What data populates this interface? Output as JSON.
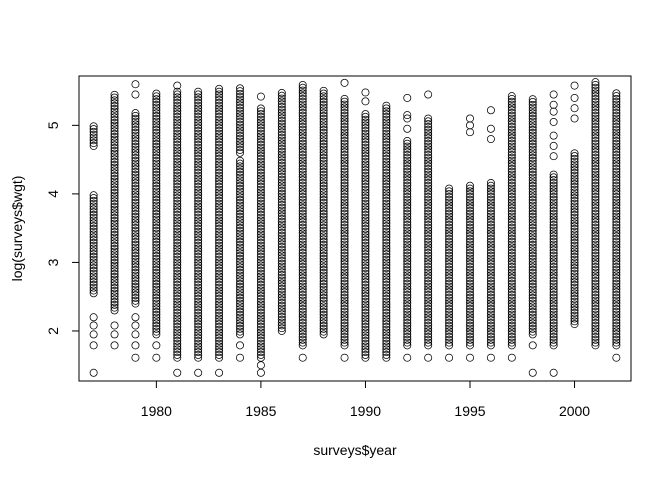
{
  "chart_data": {
    "type": "scatter",
    "title": "",
    "xlabel": "surveys$year",
    "ylabel": "log(surveys$wgt)",
    "xlim": [
      1976.3,
      2002.7
    ],
    "ylim": [
      1.27,
      5.72
    ],
    "x_ticks": [
      1980,
      1985,
      1990,
      1995,
      2000
    ],
    "x_tick_labels": [
      "1980",
      "1985",
      "1990",
      "1995",
      "2000"
    ],
    "y_ticks": [
      2,
      3,
      4,
      5
    ],
    "y_tick_labels": [
      "2",
      "3",
      "4",
      "5"
    ],
    "marker": "open-circle",
    "grid": false,
    "legend": "none",
    "point_color": "#000000",
    "series": [
      {
        "year": 1977,
        "segments": [
          [
            2.55,
            4.02
          ],
          [
            4.7,
            5.0
          ]
        ],
        "isolated": [
          1.39,
          1.79,
          1.95,
          2.08,
          2.2
        ]
      },
      {
        "year": 1978,
        "segments": [
          [
            2.3,
            5.45
          ]
        ],
        "isolated": [
          1.79,
          1.95,
          2.08
        ]
      },
      {
        "year": 1979,
        "segments": [
          [
            2.4,
            5.2
          ]
        ],
        "isolated": [
          1.61,
          1.79,
          1.95,
          2.08,
          2.2,
          5.45,
          5.6
        ]
      },
      {
        "year": 1980,
        "segments": [
          [
            1.95,
            5.5
          ]
        ],
        "isolated": [
          1.61,
          1.79
        ]
      },
      {
        "year": 1981,
        "segments": [
          [
            1.61,
            5.5
          ]
        ],
        "isolated": [
          1.39,
          5.58
        ]
      },
      {
        "year": 1982,
        "segments": [
          [
            1.61,
            5.53
          ]
        ],
        "isolated": [
          1.39
        ]
      },
      {
        "year": 1983,
        "segments": [
          [
            1.61,
            5.55
          ]
        ],
        "isolated": [
          1.39
        ]
      },
      {
        "year": 1984,
        "segments": [
          [
            1.95,
            4.5
          ],
          [
            4.6,
            5.55
          ]
        ],
        "isolated": [
          1.61,
          1.79
        ]
      },
      {
        "year": 1985,
        "segments": [
          [
            1.61,
            5.25
          ]
        ],
        "isolated": [
          1.39,
          1.5,
          5.42
        ]
      },
      {
        "year": 1986,
        "segments": [
          [
            2.0,
            5.48
          ]
        ],
        "isolated": []
      },
      {
        "year": 1987,
        "segments": [
          [
            1.79,
            5.62
          ]
        ],
        "isolated": [
          1.61
        ]
      },
      {
        "year": 1988,
        "segments": [
          [
            1.95,
            5.52
          ]
        ],
        "isolated": []
      },
      {
        "year": 1989,
        "segments": [
          [
            1.79,
            5.4
          ]
        ],
        "isolated": [
          1.61,
          5.62
        ]
      },
      {
        "year": 1990,
        "segments": [
          [
            1.61,
            5.2
          ]
        ],
        "isolated": [
          5.35,
          5.48
        ]
      },
      {
        "year": 1991,
        "segments": [
          [
            1.61,
            5.3
          ]
        ],
        "isolated": []
      },
      {
        "year": 1992,
        "segments": [
          [
            1.79,
            4.8
          ]
        ],
        "isolated": [
          1.61,
          4.95,
          5.1,
          5.15,
          5.4
        ]
      },
      {
        "year": 1993,
        "segments": [
          [
            1.79,
            5.1
          ]
        ],
        "isolated": [
          1.61,
          5.45
        ]
      },
      {
        "year": 1994,
        "segments": [
          [
            1.79,
            4.1
          ]
        ],
        "isolated": [
          1.61
        ]
      },
      {
        "year": 1995,
        "segments": [
          [
            1.79,
            4.15
          ]
        ],
        "isolated": [
          1.61,
          4.9,
          5.0,
          5.1
        ]
      },
      {
        "year": 1996,
        "segments": [
          [
            1.79,
            4.2
          ]
        ],
        "isolated": [
          1.61,
          4.8,
          4.95,
          5.22
        ]
      },
      {
        "year": 1997,
        "segments": [
          [
            1.79,
            5.45
          ]
        ],
        "isolated": [
          1.61
        ]
      },
      {
        "year": 1998,
        "segments": [
          [
            1.95,
            5.4
          ]
        ],
        "isolated": [
          1.39,
          1.79
        ]
      },
      {
        "year": 1999,
        "segments": [
          [
            1.79,
            4.3
          ]
        ],
        "isolated": [
          1.39,
          4.55,
          4.7,
          4.85,
          5.05,
          5.2,
          5.3,
          5.45
        ]
      },
      {
        "year": 2000,
        "segments": [
          [
            2.1,
            4.6
          ]
        ],
        "isolated": [
          5.1,
          5.25,
          5.4,
          5.58
        ]
      },
      {
        "year": 2001,
        "segments": [
          [
            1.79,
            5.65
          ]
        ],
        "isolated": []
      },
      {
        "year": 2002,
        "segments": [
          [
            1.79,
            5.5
          ]
        ],
        "isolated": [
          1.61
        ]
      }
    ]
  }
}
